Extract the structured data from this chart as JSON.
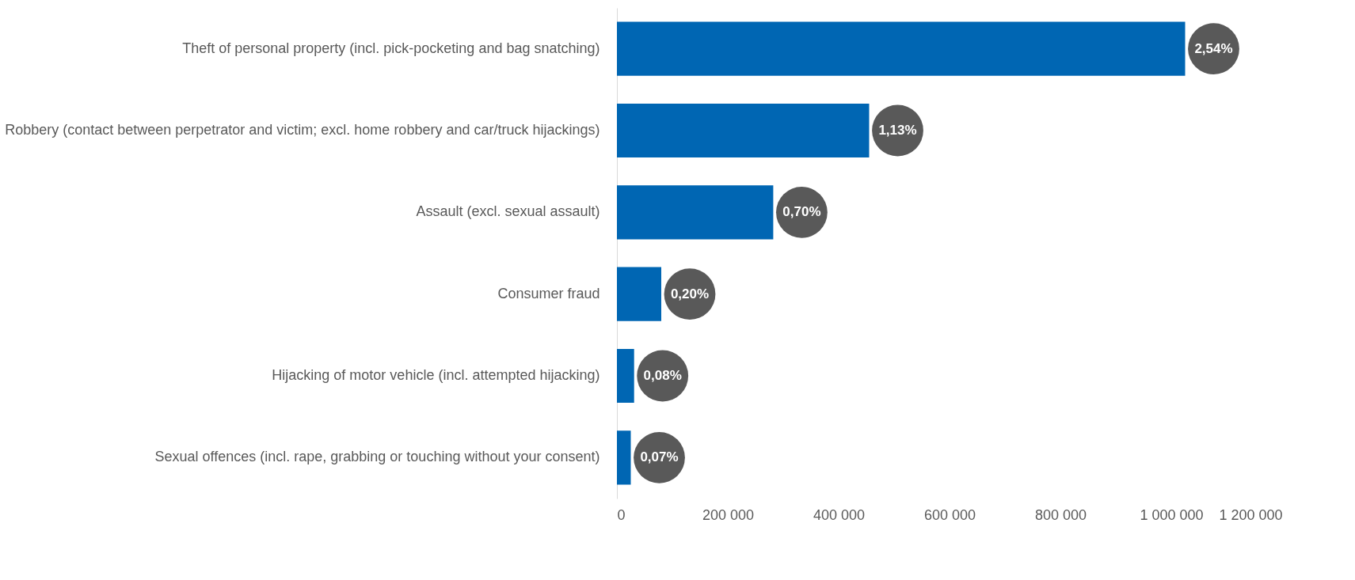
{
  "chart_data": {
    "type": "bar",
    "orientation": "horizontal",
    "categories": [
      "Theft of personal property (incl. pick-pocketing and bag snatching)",
      "Robbery (contact between perpetrator and victim; excl. home robbery and car/truck hijackings)",
      "Assault (excl. sexual assault)",
      "Consumer fraud",
      "Hijacking of motor vehicle (incl. attempted hijacking)",
      "Sexual offences (incl. rape, grabbing or touching without your consent)"
    ],
    "values": [
      1025000,
      455000,
      282000,
      80000,
      31000,
      25000
    ],
    "annotations": [
      {
        "text": "2,54%",
        "x": 1025000,
        "y": "Theft of personal property (incl. pick-pocketing and bag snatching)"
      },
      {
        "text": "1,13%",
        "x": 455000,
        "y": "Robbery (contact between perpetrator and victim; excl. home robbery and car/truck hijackings)"
      },
      {
        "text": "0,70%",
        "x": 282000,
        "y": "Assault (excl. sexual assault)"
      },
      {
        "text": "0,20%",
        "x": 80000,
        "y": "Consumer fraud"
      },
      {
        "text": "0,08%",
        "x": 31000,
        "y": "Hijacking of motor vehicle (incl. attempted hijacking)"
      },
      {
        "text": "0,07%",
        "x": 25000,
        "y": "Sexual offences (incl. rape, grabbing or touching without your consent)"
      }
    ],
    "color": "#0066b3",
    "xlim": [
      0,
      1200000
    ],
    "xticks": [
      {
        "value": 0,
        "label": "0"
      },
      {
        "value": 200000,
        "label": "200 000"
      },
      {
        "value": 400000,
        "label": "400 000"
      },
      {
        "value": 600000,
        "label": "600 000"
      },
      {
        "value": 800000,
        "label": "800 000"
      },
      {
        "value": 1000000,
        "label": "1 000 000"
      },
      {
        "value": 1200000,
        "label": "1 200 000"
      }
    ],
    "grid": false
  }
}
